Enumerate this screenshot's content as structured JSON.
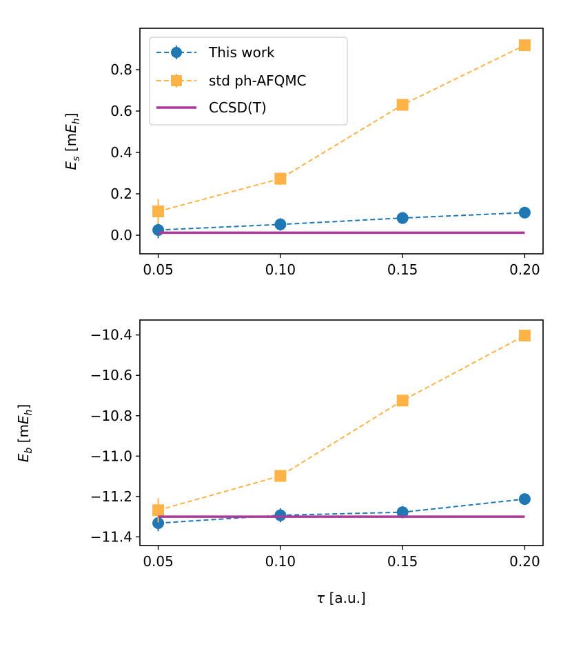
{
  "chart_data": [
    {
      "type": "line",
      "panel": "top",
      "x": [
        0.05,
        0.1,
        0.15,
        0.2
      ],
      "xticks": [
        0.05,
        0.1,
        0.15,
        0.2
      ],
      "xtick_labels": [
        "0.05",
        "0.10",
        "0.15",
        "0.20"
      ],
      "xlim": [
        0.0425,
        0.2075
      ],
      "yticks": [
        0.0,
        0.2,
        0.4,
        0.6,
        0.8
      ],
      "ytick_labels": [
        "0.0",
        "0.2",
        "0.4",
        "0.6",
        "0.8"
      ],
      "ylim": [
        -0.09,
        1.0
      ],
      "ylabel_main": "E",
      "ylabel_sub": "s",
      "ylabel_unit_pre": " [m",
      "ylabel_unit_main": "E",
      "ylabel_unit_sub": "h",
      "ylabel_unit_post": "]",
      "xlabel": "",
      "legend": "top-left",
      "series": [
        {
          "name": "This work",
          "marker": "circle",
          "linestyle": "dashed",
          "color": "#1f77b4",
          "values": [
            0.025,
            0.052,
            0.083,
            0.109
          ],
          "errors": [
            0.04,
            0.03,
            0.02,
            0.015
          ]
        },
        {
          "name": "std ph-AFQMC",
          "marker": "square",
          "linestyle": "dashed",
          "color": "#ffb347",
          "values": [
            0.115,
            0.273,
            0.63,
            0.918
          ],
          "errors": [
            0.06,
            0.03,
            0.02,
            0.01
          ]
        },
        {
          "name": "CCSD(T)",
          "marker": "none",
          "linestyle": "solid",
          "color": "#b0379a",
          "values": [
            0.012,
            0.012,
            0.012,
            0.012
          ],
          "errors": [
            0,
            0,
            0,
            0
          ]
        }
      ]
    },
    {
      "type": "line",
      "panel": "bottom",
      "x": [
        0.05,
        0.1,
        0.15,
        0.2
      ],
      "xticks": [
        0.05,
        0.1,
        0.15,
        0.2
      ],
      "xtick_labels": [
        "0.05",
        "0.10",
        "0.15",
        "0.20"
      ],
      "xlim": [
        0.0425,
        0.2075
      ],
      "yticks": [
        -11.4,
        -11.2,
        -11.0,
        -10.8,
        -10.6,
        -10.4
      ],
      "ytick_labels": [
        "−11.4",
        "−11.2",
        "−11.0",
        "−10.8",
        "−10.6",
        "−10.4"
      ],
      "ylim": [
        -11.443,
        -10.326
      ],
      "ylabel_main": "E",
      "ylabel_sub": "b",
      "ylabel_unit_pre": " [m",
      "ylabel_unit_main": "E",
      "ylabel_unit_sub": "h",
      "ylabel_unit_post": "]",
      "xlabel_main": "τ",
      "xlabel_rest": " [a.u.]",
      "series": [
        {
          "name": "This work",
          "marker": "circle",
          "linestyle": "dashed",
          "color": "#1f77b4",
          "values": [
            -11.332,
            -11.293,
            -11.278,
            -11.213
          ],
          "errors": [
            0.04,
            0.035,
            0.03,
            0.015
          ]
        },
        {
          "name": "std ph-AFQMC",
          "marker": "square",
          "linestyle": "dashed",
          "color": "#ffb347",
          "values": [
            -11.268,
            -11.098,
            -10.725,
            -10.403
          ],
          "errors": [
            0.06,
            0.03,
            0.02,
            0.01
          ]
        },
        {
          "name": "CCSD(T)",
          "marker": "none",
          "linestyle": "solid",
          "color": "#b0379a",
          "values": [
            -11.3,
            -11.3,
            -11.3,
            -11.3
          ],
          "errors": [
            0,
            0,
            0,
            0
          ]
        }
      ]
    }
  ]
}
